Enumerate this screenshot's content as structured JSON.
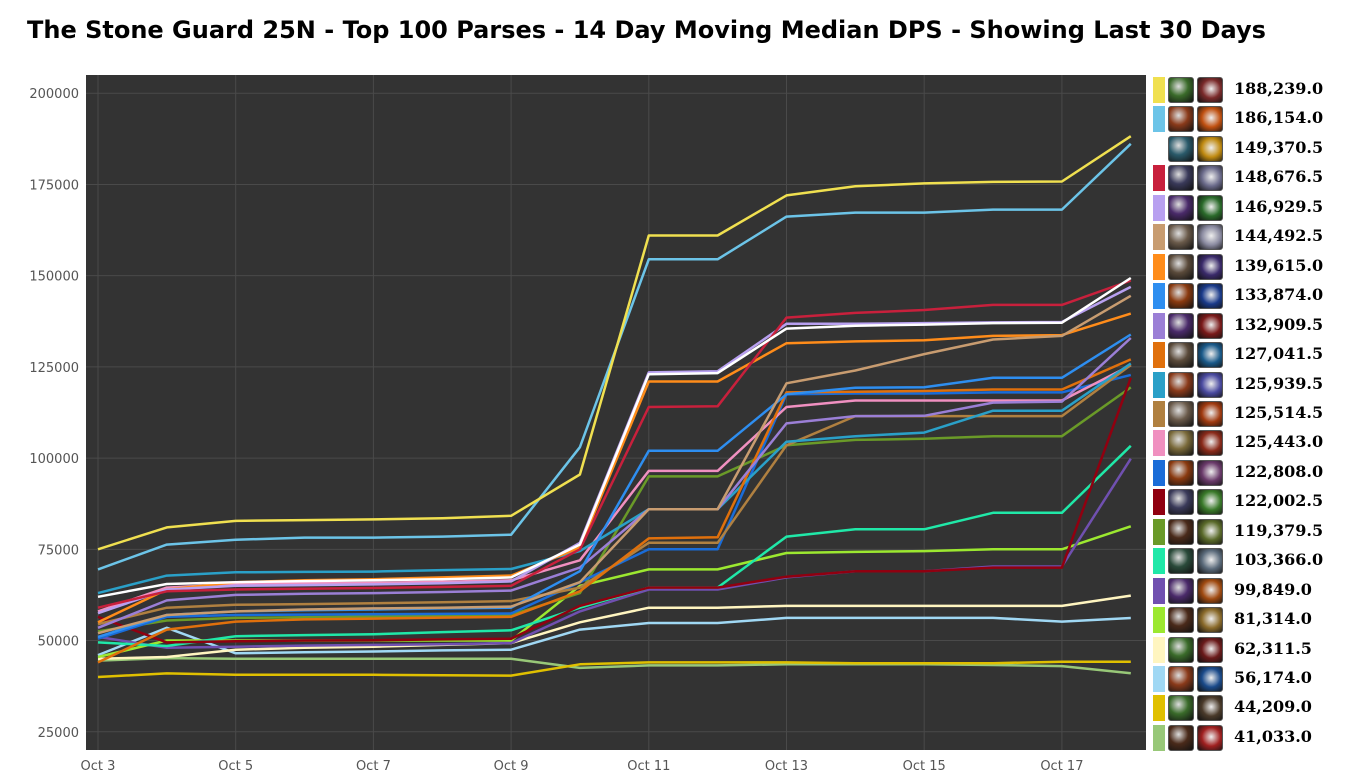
{
  "title": "The Stone Guard 25N - Top 100 Parses - 14 Day Moving Median DPS - Showing Last 30 Days",
  "colors": {
    "plot_background": "#333333",
    "grid": "#4a4a4a",
    "tick_text": "#555555"
  },
  "chart_data": {
    "type": "line",
    "title": "The Stone Guard 25N - Top 100 Parses - 14 Day Moving Median DPS - Showing Last 30 Days",
    "xlabel": "",
    "ylabel": "",
    "x": [
      "Oct 3",
      "Oct 4",
      "Oct 5",
      "Oct 6",
      "Oct 7",
      "Oct 8",
      "Oct 9",
      "Oct 10",
      "Oct 11",
      "Oct 12",
      "Oct 13",
      "Oct 14",
      "Oct 15",
      "Oct 16",
      "Oct 17",
      "Oct 18"
    ],
    "x_tick_labels": [
      "Oct 3",
      "Oct 5",
      "Oct 7",
      "Oct 9",
      "Oct 11",
      "Oct 13",
      "Oct 15",
      "Oct 17"
    ],
    "ylim": [
      20000,
      205000
    ],
    "y_ticks": [
      25000,
      50000,
      75000,
      100000,
      125000,
      150000,
      175000,
      200000
    ],
    "grid": true,
    "legend_position": "right",
    "series": [
      {
        "color": "#f0e050",
        "legend_value": "188,239.0",
        "values": [
          75000,
          81000,
          82800,
          83000,
          83200,
          83500,
          84200,
          95500,
          161000,
          161000,
          172000,
          174500,
          175300,
          175700,
          175800,
          188239
        ]
      },
      {
        "color": "#6cc4e8",
        "legend_value": "186,154.0",
        "values": [
          69500,
          76300,
          77600,
          78200,
          78200,
          78500,
          79000,
          103000,
          154500,
          154500,
          166200,
          167300,
          167300,
          168100,
          168100,
          186154
        ]
      },
      {
        "color": "#ffffff",
        "legend_value": "149,370.5",
        "values": [
          62000,
          65500,
          66000,
          66300,
          66500,
          66800,
          67300,
          76300,
          123000,
          123300,
          135500,
          136300,
          136600,
          137000,
          137100,
          149370.5
        ]
      },
      {
        "color": "#c8203c",
        "legend_value": "148,676.5",
        "values": [
          59000,
          63500,
          64000,
          64200,
          64400,
          64700,
          65000,
          75000,
          114000,
          114200,
          138500,
          139800,
          140600,
          142000,
          142000,
          148676.5
        ]
      },
      {
        "color": "#b8a0f0",
        "legend_value": "146,929.5",
        "values": [
          57500,
          64000,
          65000,
          65200,
          65400,
          65700,
          66200,
          76800,
          123500,
          123800,
          136800,
          136800,
          137000,
          137200,
          137300,
          146929.5
        ]
      },
      {
        "color": "#c89c70",
        "legend_value": "144,492.5",
        "values": [
          52000,
          57000,
          58000,
          58500,
          58800,
          59000,
          59300,
          66000,
          86000,
          86000,
          120500,
          124000,
          128500,
          132500,
          133500,
          144492.5
        ]
      },
      {
        "color": "#ff8c1a",
        "legend_value": "139,615.0",
        "values": [
          55000,
          64000,
          66000,
          66500,
          66800,
          67300,
          67800,
          75500,
          121000,
          121000,
          131500,
          132000,
          132300,
          133500,
          133700,
          139615
        ]
      },
      {
        "color": "#2e8ef0",
        "legend_value": "133,874.0",
        "values": [
          51000,
          57000,
          58000,
          58300,
          58500,
          58800,
          59000,
          69000,
          102000,
          102000,
          117500,
          119300,
          119400,
          122000,
          122000,
          133874
        ]
      },
      {
        "color": "#9b7fd6",
        "legend_value": "132,909.5",
        "values": [
          53500,
          61000,
          62500,
          62800,
          63000,
          63300,
          63700,
          70000,
          86000,
          86000,
          109500,
          111500,
          111600,
          115200,
          115500,
          132909.5
        ]
      },
      {
        "color": "#e0700c",
        "legend_value": "127,041.5",
        "values": [
          44000,
          53000,
          55200,
          55800,
          56000,
          56300,
          56500,
          63500,
          78000,
          78300,
          118000,
          118200,
          118400,
          118800,
          118800,
          127041.5
        ]
      },
      {
        "color": "#2aa0c8",
        "legend_value": "125,939.5",
        "values": [
          63000,
          67800,
          68700,
          68800,
          68900,
          69300,
          69600,
          74500,
          86000,
          86000,
          104500,
          106000,
          107000,
          113000,
          113000,
          125939.5
        ]
      },
      {
        "color": "#b08040",
        "legend_value": "125,514.5",
        "values": [
          54500,
          59000,
          59800,
          60000,
          60200,
          60500,
          60800,
          64500,
          76800,
          76800,
          103500,
          111500,
          111500,
          111500,
          111500,
          125514.5
        ]
      },
      {
        "color": "#f090c0",
        "legend_value": "125,443.0",
        "values": [
          58000,
          64500,
          65500,
          65700,
          65800,
          66100,
          66500,
          72000,
          96500,
          96500,
          114000,
          115800,
          115800,
          115800,
          115800,
          125443
        ]
      },
      {
        "color": "#1a6cd8",
        "legend_value": "122,808.0",
        "values": [
          50500,
          56500,
          57000,
          57100,
          57200,
          57300,
          57400,
          66000,
          75000,
          75000,
          117500,
          117700,
          117700,
          118000,
          118000,
          122808
        ]
      },
      {
        "color": "#900010",
        "legend_value": "122,002.5",
        "values": [
          56500,
          49500,
          49800,
          50000,
          50100,
          50300,
          50500,
          59500,
          64500,
          64500,
          67500,
          69000,
          69000,
          70000,
          70000,
          122002.5
        ]
      },
      {
        "color": "#6a9a28",
        "legend_value": "119,379.5",
        "values": [
          52500,
          55500,
          56200,
          56400,
          56600,
          56800,
          57000,
          63000,
          95000,
          95000,
          103500,
          105000,
          105300,
          106000,
          106000,
          119379.5
        ]
      },
      {
        "color": "#20e8a8",
        "legend_value": "103,366.0",
        "values": [
          49500,
          48500,
          51200,
          51500,
          51700,
          52300,
          52800,
          59000,
          64500,
          64500,
          78500,
          80500,
          80500,
          85000,
          85000,
          103366
        ]
      },
      {
        "color": "#7050b0",
        "legend_value": "99,849.0",
        "values": [
          51000,
          48000,
          48300,
          48600,
          48800,
          49000,
          49300,
          58000,
          64000,
          64000,
          67300,
          69000,
          69000,
          70300,
          70300,
          99849
        ]
      },
      {
        "color": "#9ce830",
        "legend_value": "81,314.0",
        "values": [
          45500,
          50000,
          50000,
          50000,
          50000,
          50000,
          50000,
          65000,
          69500,
          69500,
          74000,
          74300,
          74500,
          75000,
          75000,
          81314
        ]
      },
      {
        "color": "#fff5c0",
        "legend_value": "62,311.5",
        "values": [
          45000,
          45500,
          47500,
          48000,
          48300,
          48800,
          49300,
          55000,
          59000,
          59000,
          59500,
          59500,
          59500,
          59500,
          59500,
          62311.5
        ]
      },
      {
        "color": "#a0d8f4",
        "legend_value": "56,174.0",
        "values": [
          46000,
          53500,
          46500,
          46800,
          47000,
          47300,
          47500,
          53000,
          54800,
          54800,
          56200,
          56200,
          56200,
          56200,
          55200,
          56174
        ]
      },
      {
        "color": "#e0c000",
        "legend_value": "44,209.0",
        "values": [
          40000,
          41000,
          40600,
          40600,
          40600,
          40500,
          40400,
          43500,
          44000,
          44000,
          44000,
          43800,
          43800,
          43800,
          44200,
          44209
        ]
      },
      {
        "color": "#98c878",
        "legend_value": "41,033.0",
        "values": [
          44500,
          45200,
          45000,
          45000,
          45000,
          45000,
          45000,
          42500,
          43200,
          43200,
          43500,
          43500,
          43500,
          43300,
          43000,
          41033
        ]
      }
    ]
  },
  "legend": [
    {
      "color": "#f0e050",
      "value": "188,239.0",
      "icon_a": "hunter-icon",
      "icon_b": "beast-mastery-icon"
    },
    {
      "color": "#6cc4e8",
      "value": "186,154.0",
      "icon_a": "mage-icon",
      "icon_b": "fire-spec-icon"
    },
    {
      "color": "#ffffff",
      "value": "149,370.5",
      "icon_a": "hunter-icon",
      "icon_b": "survival-spec-icon"
    },
    {
      "color": "#c8203c",
      "value": "148,676.5",
      "icon_a": "death-knight-icon",
      "icon_b": "frost-spec-icon"
    },
    {
      "color": "#b8a0f0",
      "value": "146,929.5",
      "icon_a": "warlock-icon",
      "icon_b": "affliction-spec-icon"
    },
    {
      "color": "#c89c70",
      "value": "144,492.5",
      "icon_a": "warrior-icon",
      "icon_b": "arms-spec-icon"
    },
    {
      "color": "#ff8c1a",
      "value": "139,615.0",
      "icon_a": "druid-icon",
      "icon_b": "balance-spec-icon"
    },
    {
      "color": "#2e8ef0",
      "value": "133,874.0",
      "icon_a": "shaman-icon",
      "icon_b": "elemental-spec-icon"
    },
    {
      "color": "#9b7fd6",
      "value": "132,909.5",
      "icon_a": "warlock-icon",
      "icon_b": "demonology-spec-icon"
    },
    {
      "color": "#e0700c",
      "value": "127,041.5",
      "icon_a": "druid-icon",
      "icon_b": "feral-spec-icon"
    },
    {
      "color": "#2aa0c8",
      "value": "125,939.5",
      "icon_a": "mage-icon",
      "icon_b": "arcane-spec-icon"
    },
    {
      "color": "#b08040",
      "value": "125,514.5",
      "icon_a": "warrior-icon",
      "icon_b": "fury-spec-icon"
    },
    {
      "color": "#f090c0",
      "value": "125,443.0",
      "icon_a": "paladin-icon",
      "icon_b": "retribution-spec-icon"
    },
    {
      "color": "#1a6cd8",
      "value": "122,808.0",
      "icon_a": "shaman-icon",
      "icon_b": "enhancement-spec-icon"
    },
    {
      "color": "#900010",
      "value": "122,002.5",
      "icon_a": "death-knight-icon",
      "icon_b": "unholy-spec-icon"
    },
    {
      "color": "#6a9a28",
      "value": "119,379.5",
      "icon_a": "rogue-icon",
      "icon_b": "combat-spec-icon"
    },
    {
      "color": "#20e8a8",
      "value": "103,366.0",
      "icon_a": "monk-icon",
      "icon_b": "windwalker-spec-icon"
    },
    {
      "color": "#7050b0",
      "value": "99,849.0",
      "icon_a": "warlock-icon",
      "icon_b": "destruction-spec-icon"
    },
    {
      "color": "#9ce830",
      "value": "81,314.0",
      "icon_a": "rogue-icon",
      "icon_b": "subtlety-spec-icon"
    },
    {
      "color": "#fff5c0",
      "value": "62,311.5",
      "icon_a": "hunter-icon",
      "icon_b": "marksmanship-spec-icon"
    },
    {
      "color": "#a0d8f4",
      "value": "56,174.0",
      "icon_a": "mage-icon",
      "icon_b": "frost-mage-spec-icon"
    },
    {
      "color": "#e0c000",
      "value": "44,209.0",
      "icon_a": "rogue-icon",
      "icon_b": "assassination-spec-icon"
    },
    {
      "color": "#98c878",
      "value": "41,033.0",
      "icon_a": "rogue-icon",
      "icon_b": "blood-spec-icon"
    }
  ]
}
